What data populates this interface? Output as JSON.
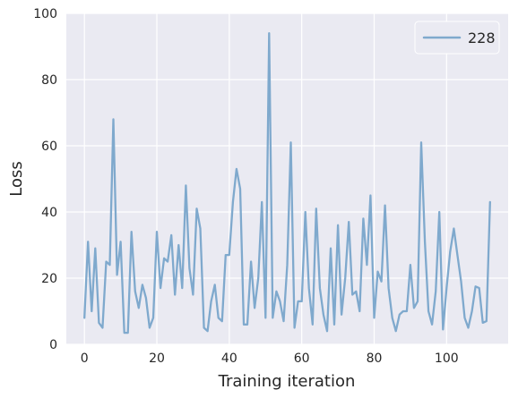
{
  "chart_data": {
    "type": "line",
    "xlabel": "Training iteration",
    "ylabel": "Loss",
    "xlim": [
      -5,
      117
    ],
    "ylim": [
      0,
      100
    ],
    "grid": true,
    "legend_placement": "top-right",
    "x_ticks": [
      0,
      20,
      40,
      60,
      80,
      100
    ],
    "y_ticks": [
      0,
      20,
      40,
      60,
      80,
      100
    ],
    "series": [
      {
        "name": "228",
        "color": "#7fa9cd",
        "x": [
          0,
          1,
          2,
          3,
          4,
          5,
          6,
          7,
          8,
          9,
          10,
          11,
          12,
          13,
          14,
          15,
          16,
          17,
          18,
          19,
          20,
          21,
          22,
          23,
          24,
          25,
          26,
          27,
          28,
          29,
          30,
          31,
          32,
          33,
          34,
          35,
          36,
          37,
          38,
          39,
          40,
          41,
          42,
          43,
          44,
          45,
          46,
          47,
          48,
          49,
          50,
          51,
          52,
          53,
          54,
          55,
          56,
          57,
          58,
          59,
          60,
          61,
          62,
          63,
          64,
          65,
          66,
          67,
          68,
          69,
          70,
          71,
          72,
          73,
          74,
          75,
          76,
          77,
          78,
          79,
          80,
          81,
          82,
          83,
          84,
          85,
          86,
          87,
          88,
          89,
          90,
          91,
          92,
          93,
          94,
          95,
          96,
          97,
          98,
          99,
          100,
          101,
          102,
          103,
          104,
          105,
          106,
          107,
          108,
          109,
          110,
          111,
          112
        ],
        "values": [
          8,
          31,
          10,
          29,
          6.5,
          5,
          25,
          24,
          68,
          21,
          31,
          3.5,
          3.5,
          34,
          16,
          11,
          18,
          14,
          5,
          8,
          34,
          17,
          26,
          25,
          33,
          15,
          30,
          17,
          48,
          23,
          15,
          41,
          35,
          5,
          4,
          13,
          18,
          8,
          7,
          27,
          27,
          43,
          53,
          47,
          6,
          6,
          25,
          11,
          20,
          43,
          8,
          94,
          8,
          16,
          13,
          7,
          24,
          61,
          5,
          13,
          13,
          40,
          17,
          6,
          41,
          17,
          9,
          4,
          29,
          6,
          36,
          9,
          20,
          37,
          15,
          16,
          10,
          38,
          24,
          45,
          8,
          22,
          19,
          42,
          17,
          8,
          4,
          9,
          10,
          10,
          24,
          11,
          13,
          61,
          31,
          10,
          6,
          16,
          40,
          4.5,
          17,
          28,
          35,
          27,
          19,
          8,
          5,
          10,
          17.5,
          17,
          6.5,
          7,
          43
        ]
      }
    ]
  }
}
